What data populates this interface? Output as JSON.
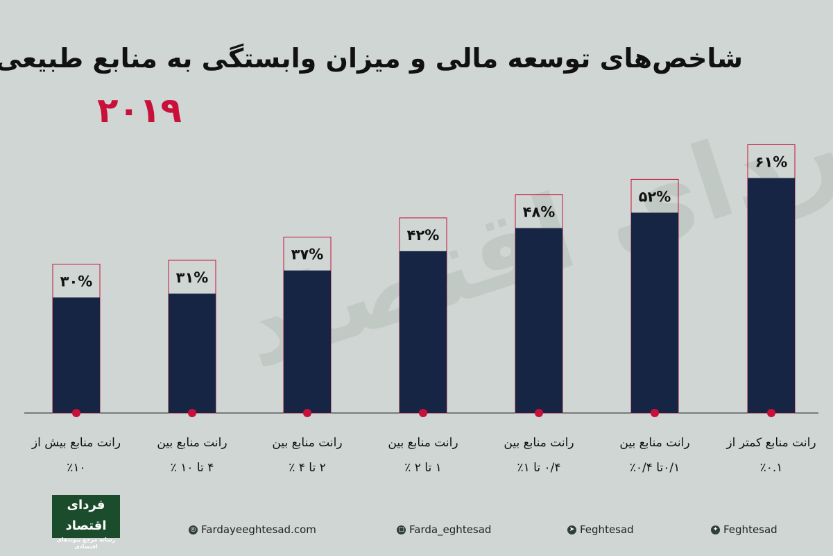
{
  "title": "شاخص‌های توسعه مالی و میزان وابستگی به منابع طبیعی",
  "year": "۲۰۱۹",
  "watermark": "فردای اقتصاد",
  "colors": {
    "bar": "#162544",
    "outline": "#c8103b",
    "dot": "#c8103b",
    "background": "#cfd6d3"
  },
  "chart_data": {
    "type": "bar",
    "categories": [
      "رانت منابع بیش از ٪۱۰",
      "رانت منابع بین ۴ تا ۱۰ ٪",
      "رانت منابع بین ۲ تا ۴ ٪",
      "رانت منابع بین ۱ تا ۲ ٪",
      "رانت منابع بین ۰/۴ تا ۱٪",
      "رانت منابع بین ۰/۱تا ۰/۴٪",
      "رانت منابع کمتر از ٪۰.۱"
    ],
    "category_lines": [
      [
        "رانت منابع بیش از",
        "٪۱۰"
      ],
      [
        "رانت منابع بین",
        "۴ تا ۱۰ ٪"
      ],
      [
        "رانت منابع بین",
        "۲ تا ۴ ٪"
      ],
      [
        "رانت منابع بین",
        "۱ تا ۲ ٪"
      ],
      [
        "رانت منابع بین",
        "۰/۴ تا ۱٪"
      ],
      [
        "رانت منابع بین",
        "۰/۱تا ۰/۴٪"
      ],
      [
        "رانت منابع کمتر از",
        "٪۰.۱"
      ]
    ],
    "values": [
      30,
      31,
      37,
      42,
      48,
      52,
      61
    ],
    "data_labels": [
      "۳۰%",
      "۳۱%",
      "۳۷%",
      "۴۲%",
      "۴۸%",
      "۵۲%",
      "۶۱%"
    ],
    "ylim": [
      0,
      100
    ],
    "grid": false,
    "legend": "none"
  },
  "footer": {
    "logo_text": "فردای اقتصاد",
    "logo_tagline": "رسانه مرجع پیوندهای اقتصادی",
    "links": [
      {
        "icon": "globe-icon",
        "text": "Fardayeeghtesad.com"
      },
      {
        "icon": "instagram-icon",
        "text": "Farda_eghtesad"
      },
      {
        "icon": "telegram-icon",
        "text": "Feghtesad"
      },
      {
        "icon": "twitter-icon",
        "text": "Feghtesad"
      }
    ]
  }
}
